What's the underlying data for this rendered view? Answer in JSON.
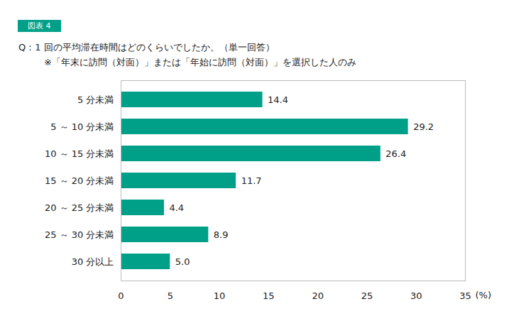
{
  "chart_data": {
    "type": "bar",
    "orientation": "horizontal",
    "annotations": [
      "図表 4"
    ],
    "title": "Q：1 回の平均滞在時間はどのくらいでしたか。（単一回答）",
    "subtitle": "※「年末に訪問（対面）」または「年始に訪問（対面）」を選択した人のみ",
    "xlabel": "(%)",
    "categories": [
      "5 分未満",
      "5 ～ 10 分未満",
      "10 ～ 15 分未満",
      "15 ～ 20 分未満",
      "20 ～ 25 分未満",
      "25 ～ 30 分未満",
      "30 分以上"
    ],
    "values": [
      14.4,
      29.2,
      26.4,
      11.7,
      4.4,
      8.9,
      5.0
    ],
    "value_labels": [
      "14.4",
      "29.2",
      "26.4",
      "11.7",
      "4.4",
      "8.9",
      "5.0"
    ],
    "color": "#00a088",
    "xlim": [
      0,
      35
    ],
    "xticks": [
      0,
      5,
      10,
      15,
      20,
      25,
      30,
      35
    ],
    "grid": false,
    "data_labels": true
  }
}
